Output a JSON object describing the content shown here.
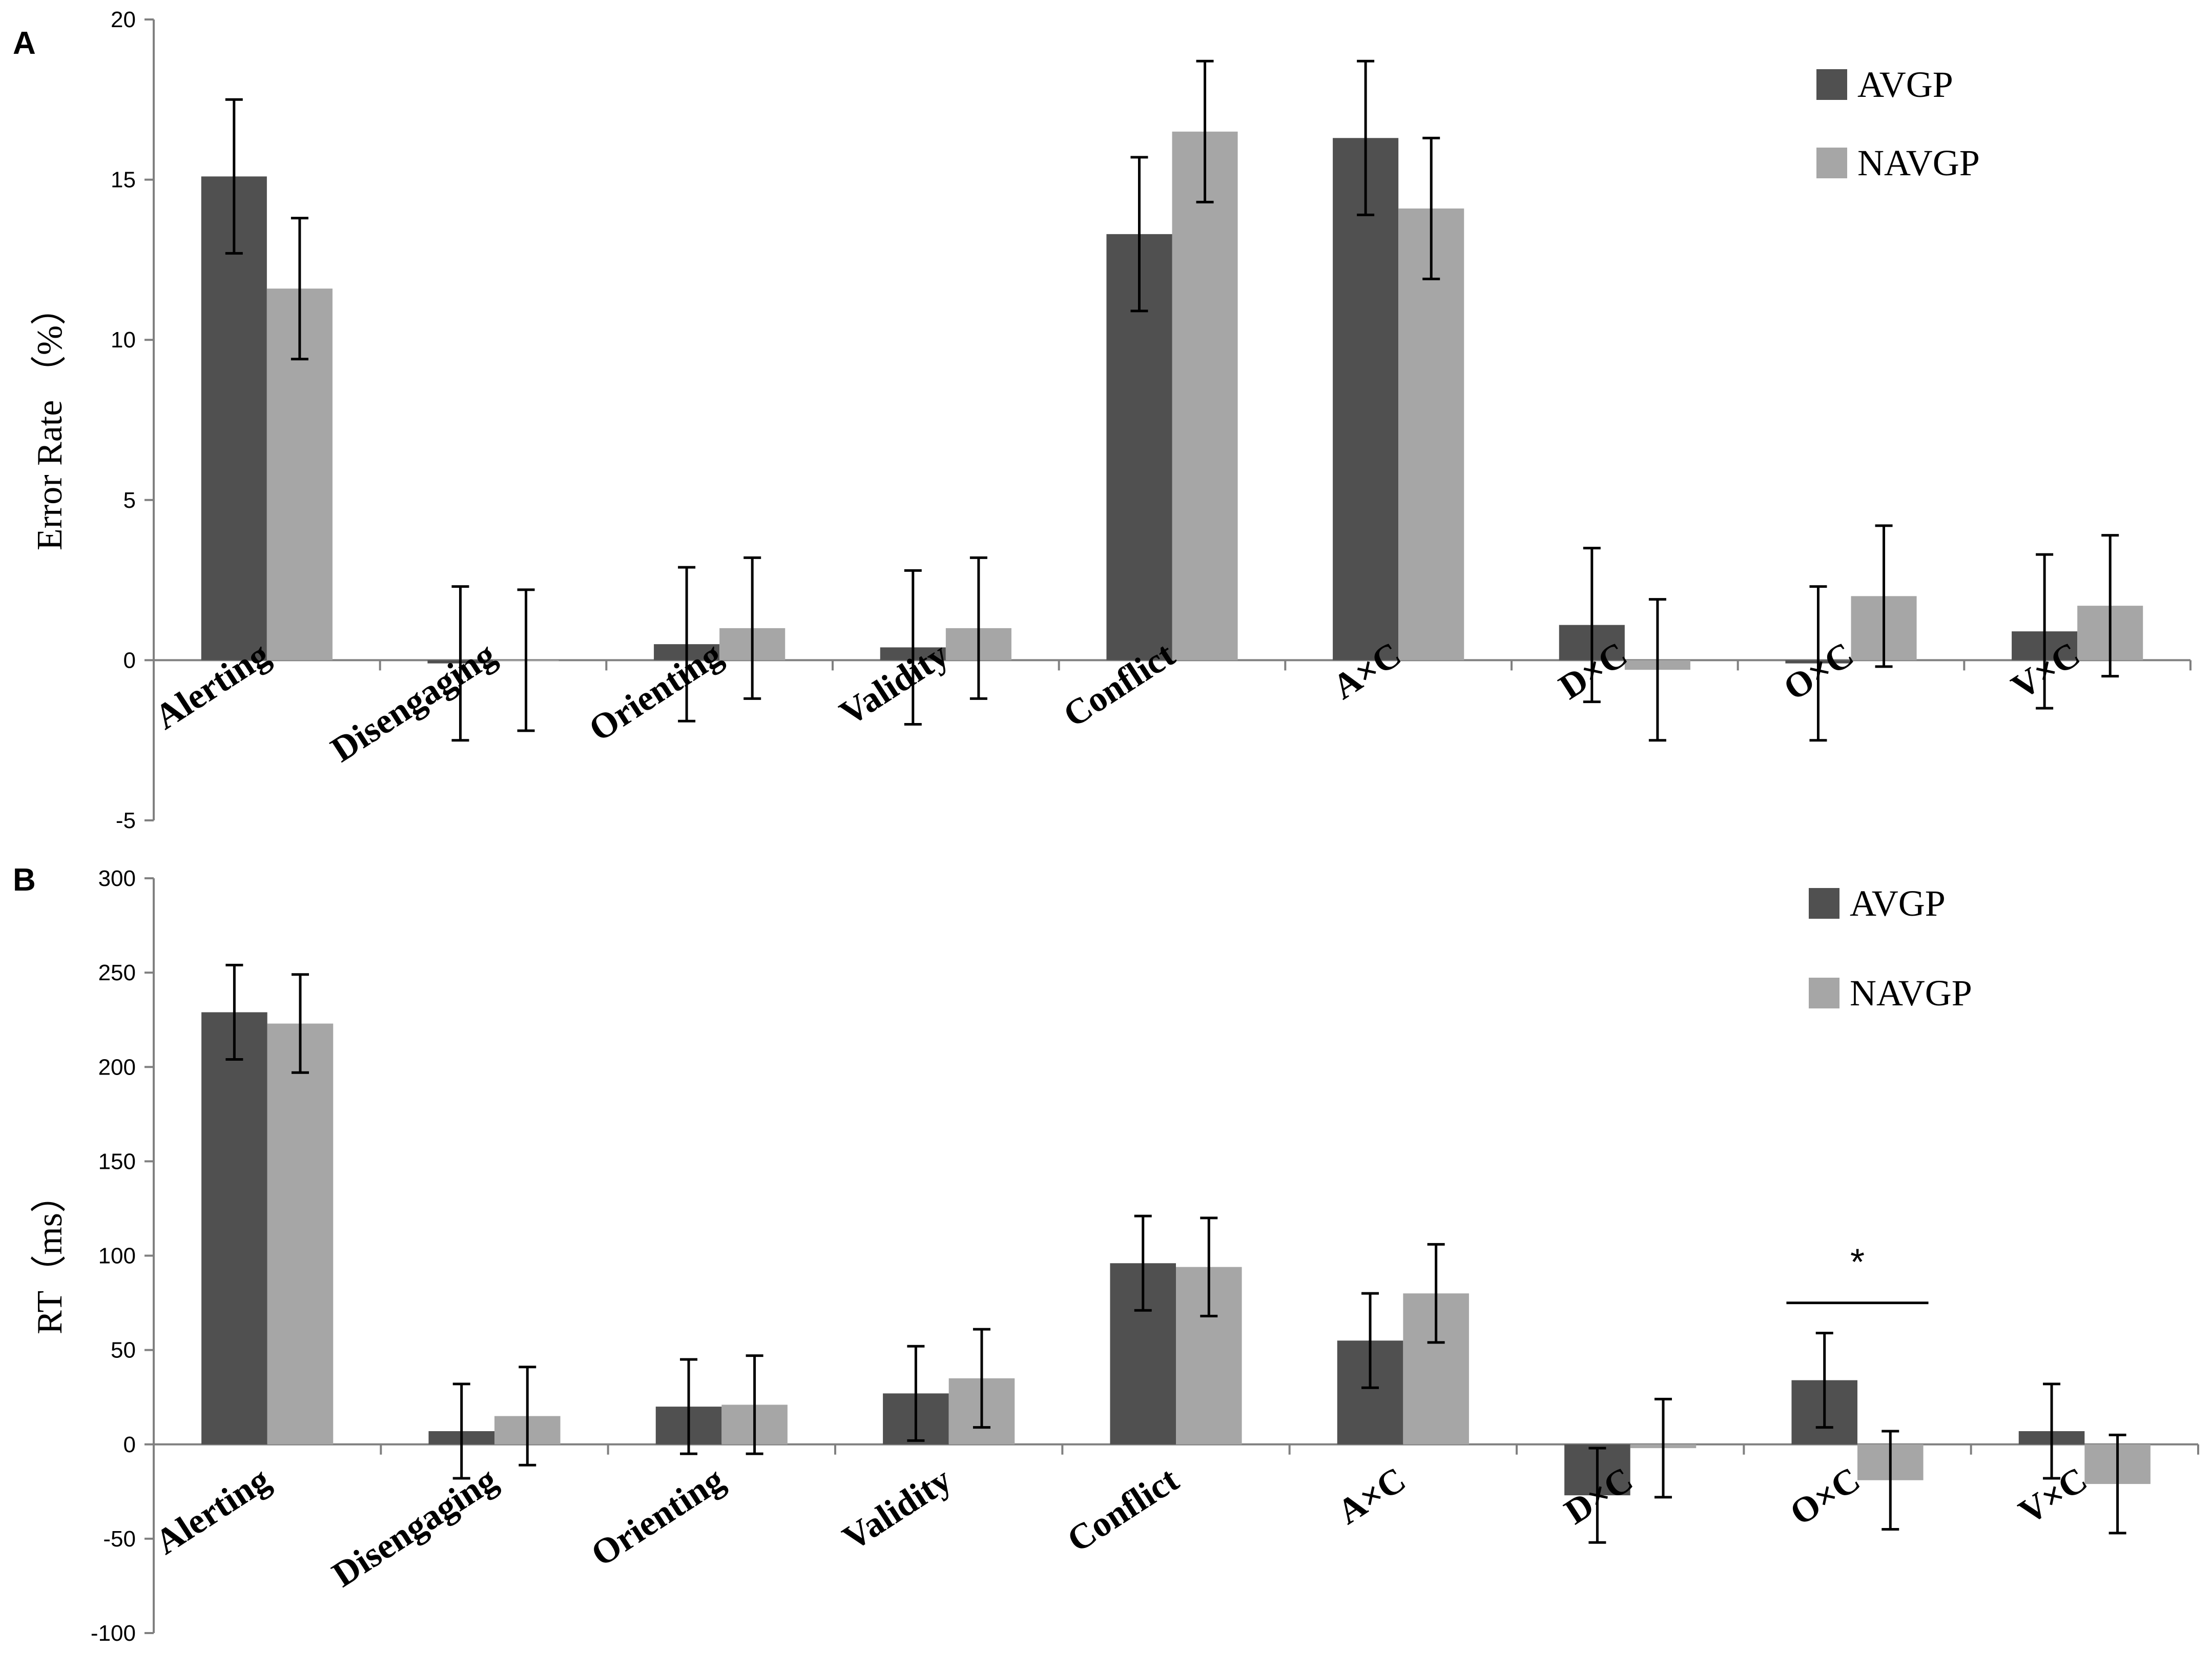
{
  "colors": {
    "AVGP": "#505050",
    "NAVGP": "#a6a6a6",
    "axis": "#808080",
    "error": "#000000"
  },
  "chart_data": [
    {
      "type": "bar",
      "panel": "A",
      "ylabel": "Error Rate （%）",
      "ylim": [
        -5,
        20
      ],
      "yticks": [
        -5,
        0,
        5,
        10,
        15,
        20
      ],
      "legend_position": "top-right",
      "categories": [
        "Alerting",
        "Disengaging",
        "Orienting",
        "Validity",
        "Conflict",
        "A×C",
        "D×C",
        "O×C",
        "V×C"
      ],
      "series": [
        {
          "name": "AVGP",
          "values": [
            15.1,
            -0.1,
            0.5,
            0.4,
            13.3,
            16.3,
            1.1,
            -0.1,
            0.9
          ],
          "errors": [
            2.4,
            2.4,
            2.4,
            2.4,
            2.4,
            2.4,
            2.4,
            2.4,
            2.4
          ]
        },
        {
          "name": "NAVGP",
          "values": [
            11.6,
            0.0,
            1.0,
            1.0,
            16.5,
            14.1,
            -0.3,
            2.0,
            1.7
          ],
          "errors": [
            2.2,
            2.2,
            2.2,
            2.2,
            2.2,
            2.2,
            2.2,
            2.2,
            2.2
          ]
        }
      ]
    },
    {
      "type": "bar",
      "panel": "B",
      "ylabel": "RT（ms）",
      "ylim": [
        -100,
        300
      ],
      "yticks": [
        -100,
        -50,
        0,
        50,
        100,
        150,
        200,
        250,
        300
      ],
      "legend_position": "top-right",
      "categories": [
        "Alerting",
        "Disengaging",
        "Orienting",
        "Validity",
        "Conflict",
        "A×C",
        "D×C",
        "O×C",
        "V×C"
      ],
      "series": [
        {
          "name": "AVGP",
          "values": [
            229,
            7,
            20,
            27,
            96,
            55,
            -27,
            34,
            7
          ],
          "errors": [
            25,
            25,
            25,
            25,
            25,
            25,
            25,
            25,
            25
          ]
        },
        {
          "name": "NAVGP",
          "values": [
            223,
            15,
            21,
            35,
            94,
            80,
            -2,
            -19,
            -21
          ],
          "errors": [
            26,
            26,
            26,
            26,
            26,
            26,
            26,
            26,
            26
          ]
        }
      ],
      "annotations": [
        {
          "text": "*",
          "category": "O×C"
        }
      ]
    }
  ]
}
